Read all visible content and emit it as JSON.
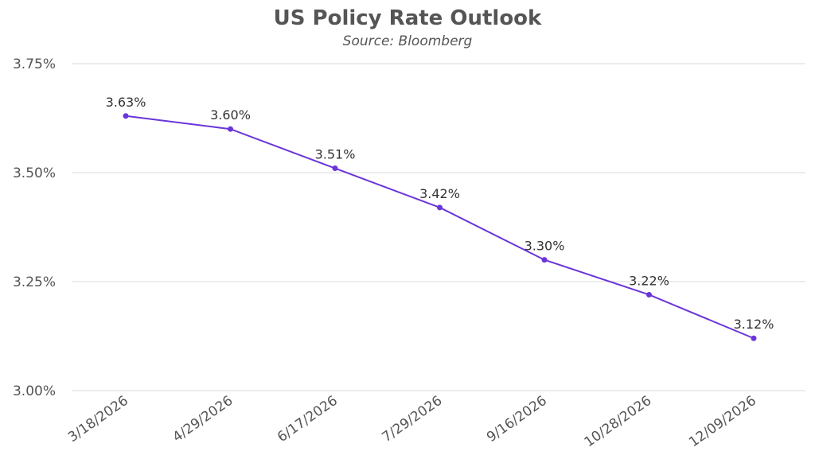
{
  "chart_data": {
    "type": "line",
    "title": "US Policy Rate Outlook",
    "subtitle": "Source: Bloomberg",
    "xlabel": "",
    "ylabel": "",
    "categories": [
      "3/18/2026",
      "4/29/2026",
      "6/17/2026",
      "7/29/2026",
      "9/16/2026",
      "10/28/2026",
      "12/09/2026"
    ],
    "series": [
      {
        "name": "US Policy Rate",
        "values": [
          3.63,
          3.6,
          3.51,
          3.42,
          3.3,
          3.22,
          3.12
        ],
        "labels": [
          "3.63%",
          "3.60%",
          "3.51%",
          "3.42%",
          "3.30%",
          "3.22%",
          "3.12%"
        ],
        "color": "#6a35d9"
      }
    ],
    "ylim": [
      3.0,
      3.75
    ],
    "yticks": [
      3.0,
      3.25,
      3.5,
      3.75
    ],
    "ytick_labels": [
      "3.00%",
      "3.25%",
      "3.50%",
      "3.75%"
    ],
    "grid": true,
    "legend": "none"
  }
}
